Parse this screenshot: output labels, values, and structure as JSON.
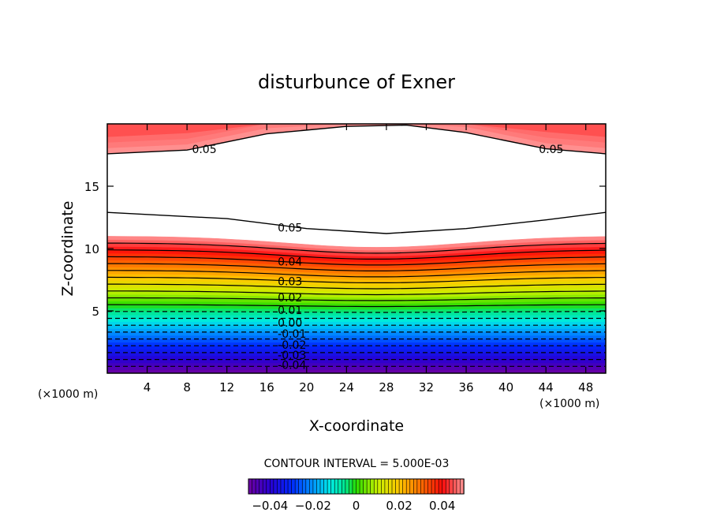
{
  "chart_data": {
    "type": "contour",
    "title": "disturbunce of Exner",
    "xlabel": "X-coordinate",
    "ylabel": "Z-coordinate",
    "x_unit_label": "(×1000 m)",
    "z_unit_label": "(×1000 m)",
    "xlim": [
      0,
      50
    ],
    "ylim": [
      0,
      20
    ],
    "x_ticks": [
      4,
      8,
      12,
      16,
      20,
      24,
      28,
      32,
      36,
      40,
      44,
      48
    ],
    "y_ticks": [
      5,
      10,
      15
    ],
    "contour_interval_text": "CONTOUR INTERVAL = 5.000E-03",
    "contour_interval": 0.005,
    "colorbar": {
      "range": [
        -0.05,
        0.05
      ],
      "tick_values": [
        -0.04,
        -0.02,
        0,
        0.02,
        0.04
      ],
      "tick_labels": [
        "-0.04",
        "-0.02",
        "0",
        "0.02",
        "0.04"
      ]
    },
    "level_labels": [
      {
        "text": "0.05",
        "x": 8.5,
        "z": 17.9
      },
      {
        "text": "0.05",
        "x": 43.3,
        "z": 17.9
      },
      {
        "text": "0.05",
        "x": 17.1,
        "z": 11.6
      },
      {
        "text": "0.04",
        "x": 17.1,
        "z": 8.9
      },
      {
        "text": "0.03",
        "x": 17.1,
        "z": 7.3
      },
      {
        "text": "0.02",
        "x": 17.1,
        "z": 6.0
      },
      {
        "text": "0.01",
        "x": 17.1,
        "z": 5.0
      },
      {
        "text": "0.00",
        "x": 17.1,
        "z": 4.0
      },
      {
        "text": "-0.01",
        "x": 17.1,
        "z": 3.1
      },
      {
        "text": "-0.02",
        "x": 17.1,
        "z": 2.2
      },
      {
        "text": "-0.03",
        "x": 17.1,
        "z": 1.4
      },
      {
        "text": "-0.04",
        "x": 17.1,
        "z": 0.6
      }
    ],
    "white_region": {
      "description_of_values": "values above 0.05 (unshaded)",
      "lower_boundary_z": [
        [
          0,
          12.9
        ],
        [
          12,
          12.4
        ],
        [
          20,
          11.6
        ],
        [
          28,
          11.2
        ],
        [
          36,
          11.6
        ],
        [
          44,
          12.3
        ],
        [
          50,
          12.9
        ]
      ],
      "upper_boundary_z": [
        [
          0,
          17.6
        ],
        [
          8,
          17.9
        ],
        [
          16,
          19.2
        ],
        [
          24,
          19.8
        ],
        [
          30,
          19.9
        ],
        [
          36,
          19.3
        ],
        [
          44,
          18.0
        ],
        [
          50,
          17.6
        ]
      ]
    }
  }
}
